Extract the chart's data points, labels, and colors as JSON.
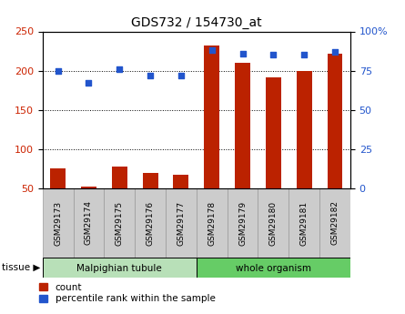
{
  "title": "GDS732 / 154730_at",
  "samples": [
    "GSM29173",
    "GSM29174",
    "GSM29175",
    "GSM29176",
    "GSM29177",
    "GSM29178",
    "GSM29179",
    "GSM29180",
    "GSM29181",
    "GSM29182"
  ],
  "counts": [
    75,
    52,
    78,
    70,
    67,
    232,
    210,
    192,
    200,
    222
  ],
  "percentiles": [
    75,
    67,
    76,
    72,
    72,
    88,
    86,
    85,
    85,
    87
  ],
  "group_labels": [
    "Malpighian tubule",
    "whole organism"
  ],
  "group_colors": [
    "#b8e0b8",
    "#66cc66"
  ],
  "bar_color": "#bb2200",
  "dot_color": "#2255cc",
  "ylim_left": [
    50,
    250
  ],
  "ylim_right": [
    0,
    100
  ],
  "yticks_left": [
    50,
    100,
    150,
    200,
    250
  ],
  "yticks_right": [
    0,
    25,
    50,
    75,
    100
  ],
  "grid_vals": [
    100,
    150,
    200
  ],
  "tissue_label": "tissue",
  "legend_count": "count",
  "legend_pct": "percentile rank within the sample",
  "tick_label_color_left": "#cc2200",
  "tick_label_color_right": "#2255cc",
  "box_facecolor": "#cccccc",
  "box_edgecolor": "#999999"
}
